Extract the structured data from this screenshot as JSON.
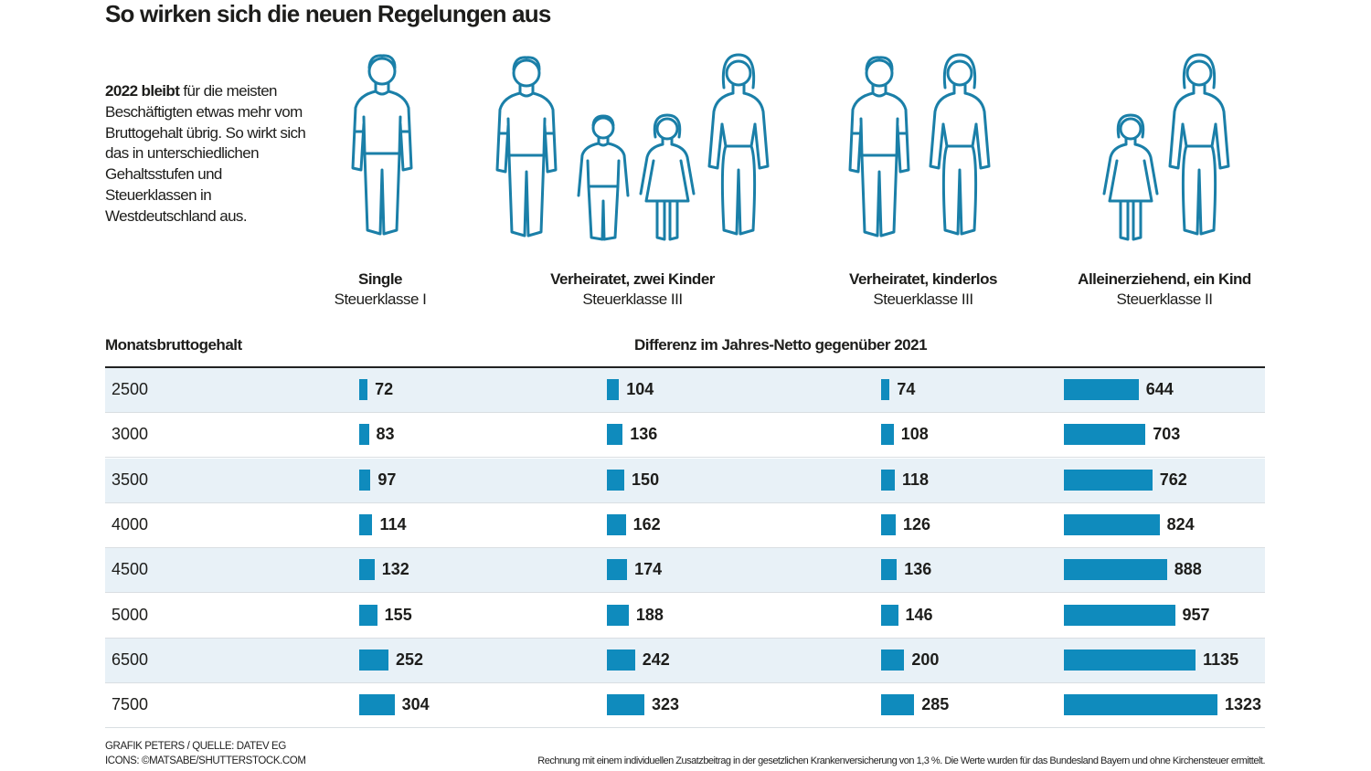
{
  "title": "So wirken sich die neuen Regelungen aus",
  "intro": {
    "bold": "2022 bleibt",
    "text": " für die meisten Beschäftigten etwas mehr vom Bruttogehalt übrig. So wirkt sich das in unterschiedlichen Gehaltsstufen und Steuerklassen in Westdeutschland aus."
  },
  "icon_color": "#1a7fa8",
  "chart_data": {
    "type": "bar",
    "orientation": "horizontal",
    "row_header": "Monatsbruttogehalt",
    "value_header": "Differenz im Jahres-Netto gegenüber 2021",
    "categories": [
      "2500",
      "3000",
      "3500",
      "4000",
      "4500",
      "5000",
      "6500",
      "7500"
    ],
    "bar_color": "#0f8bbd",
    "series": [
      {
        "name": "Single",
        "sub": "Steuerklasse I",
        "icon": "man-icon",
        "values": [
          72,
          83,
          97,
          114,
          132,
          155,
          252,
          304
        ]
      },
      {
        "name": "Verheiratet, zwei Kinder",
        "sub": "Steuerklasse III",
        "icon": "family-two-kids-icon",
        "values": [
          104,
          136,
          150,
          162,
          174,
          188,
          242,
          323
        ]
      },
      {
        "name": "Verheiratet, kinderlos",
        "sub": "Steuerklasse III",
        "icon": "couple-icon",
        "values": [
          74,
          108,
          118,
          126,
          136,
          146,
          200,
          285
        ]
      },
      {
        "name": "Alleinerziehend, ein Kind",
        "sub": "Steuerklasse II",
        "icon": "single-parent-icon",
        "values": [
          644,
          703,
          762,
          824,
          888,
          957,
          1135,
          1323
        ]
      }
    ]
  },
  "footer": {
    "credit1": "GRAFIK PETERS / QUELLE: DATEV EG",
    "credit2": "ICONS: ©MATSABE/SHUTTERSTOCK.COM",
    "note": "Rechnung mit einem individuellen Zusatzbeitrag in der gesetzlichen Krankenversicherung von 1,3 %. Die Werte wurden für das Bundesland Bayern und ohne Kirchensteuer ermittelt."
  }
}
